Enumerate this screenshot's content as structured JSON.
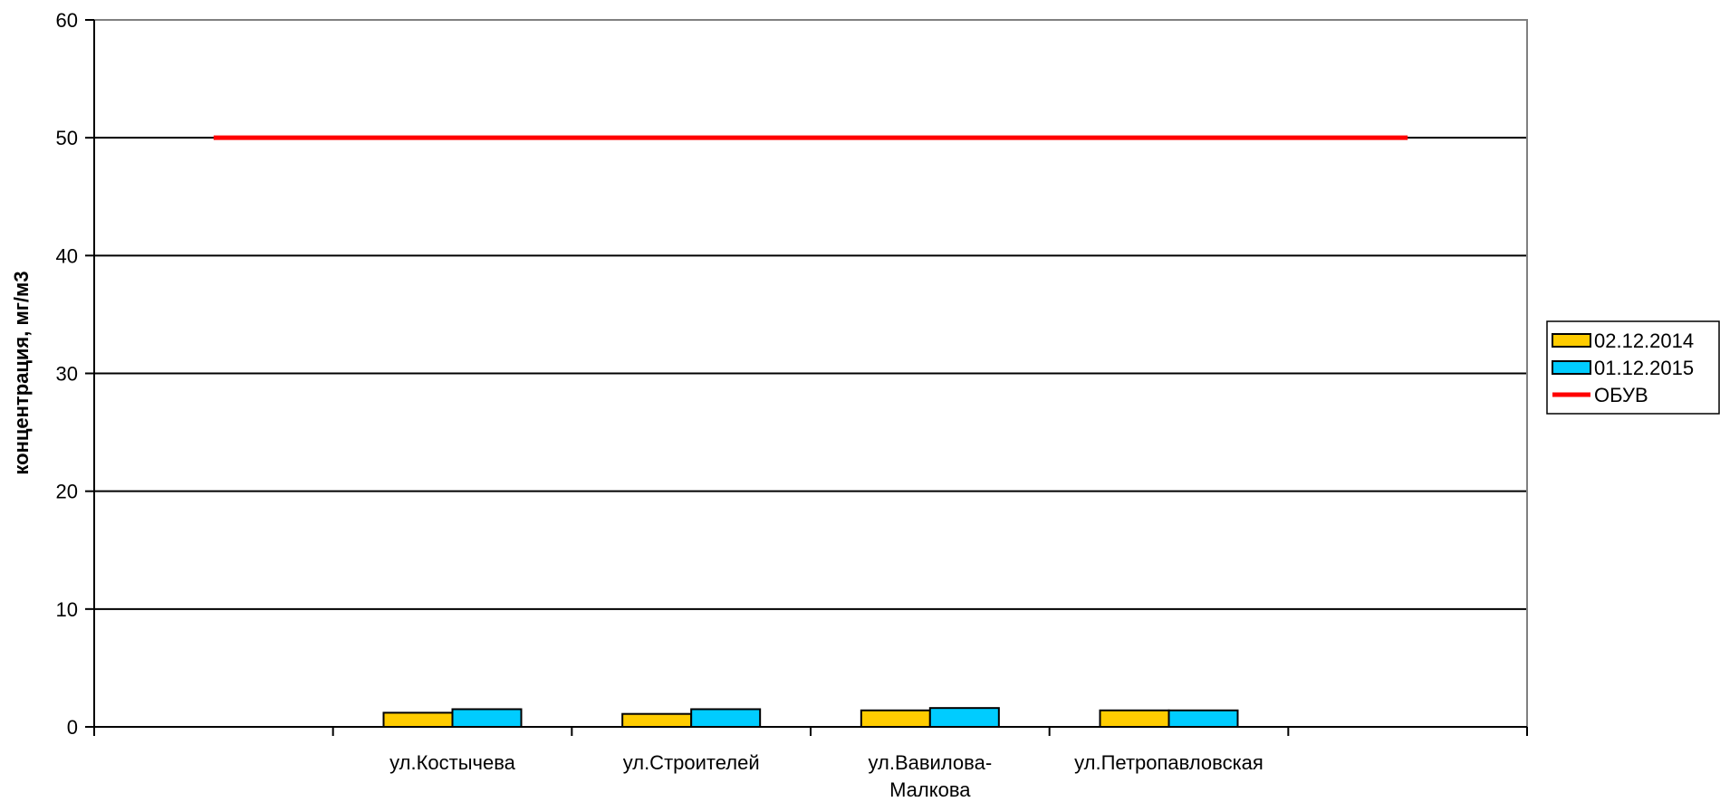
{
  "chart_data": {
    "type": "bar",
    "title": "",
    "xlabel": "",
    "ylabel": "концентрация, мг/м3",
    "ylim": [
      0,
      60
    ],
    "yticks": [
      "0",
      "10",
      "20",
      "30",
      "40",
      "50",
      "60"
    ],
    "grid": true,
    "legend_position": "right",
    "categories": [
      "",
      "ул.Костычева",
      "ул.Строителей",
      "ул.Вавилова-Малкова",
      "ул.Петропавловская",
      ""
    ],
    "category_label_lines": [
      [],
      [
        "ул.Костычева"
      ],
      [
        "ул.Строителей"
      ],
      [
        "ул.Вавилова-",
        "Малкова"
      ],
      [
        "ул.Петропавловская"
      ],
      []
    ],
    "series": [
      {
        "name": "02.12.2014",
        "type": "bar",
        "color": "#FFCC00",
        "values": [
          null,
          1.2,
          1.1,
          1.4,
          1.4,
          null
        ]
      },
      {
        "name": "01.12.2015",
        "type": "bar",
        "color": "#00CCFF",
        "values": [
          null,
          1.5,
          1.5,
          1.6,
          1.4,
          null
        ]
      },
      {
        "name": "ОБУВ",
        "type": "line",
        "color": "#FF0000",
        "values": [
          50,
          50,
          50,
          50,
          50,
          50
        ]
      }
    ]
  }
}
